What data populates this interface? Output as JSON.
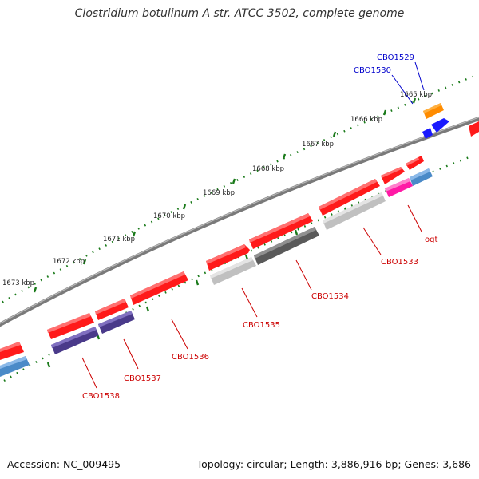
{
  "title": "Clostridium botulinum A str. ATCC 3502, complete genome",
  "footer": {
    "accession": "Accession: NC_009495",
    "summary": "Topology: circular; Length: 3,886,916 bp; Genes: 3,686"
  },
  "ticks": [
    "1665 kbp",
    "1666 kbp",
    "1667 kbp",
    "1668 kbp",
    "1669 kbp",
    "1670 kbp",
    "1671 kbp",
    "1672 kbp",
    "1673 kbp"
  ],
  "gene_labels": [
    "CBO1529",
    "CBO1530",
    "ogt",
    "CBO1533",
    "CBO1534",
    "CBO1535",
    "CBO1536",
    "CBO1537",
    "CBO1538"
  ],
  "colors": {
    "backbone": "#808080",
    "tick": "#1a7a1a",
    "red_gene": "#ff1a1a",
    "blue_gene": "#1a1aff",
    "orange_gene": "#ff8c00",
    "magenta_gene": "#ff1aa6",
    "steel_gene": "#4a8ac8",
    "purple_gene": "#4a3a8a",
    "gray_gene": "#5a5a5a",
    "lightgray_gene": "#c0c0c0",
    "label_red": "#cc0000",
    "label_blue": "#0000cc"
  }
}
